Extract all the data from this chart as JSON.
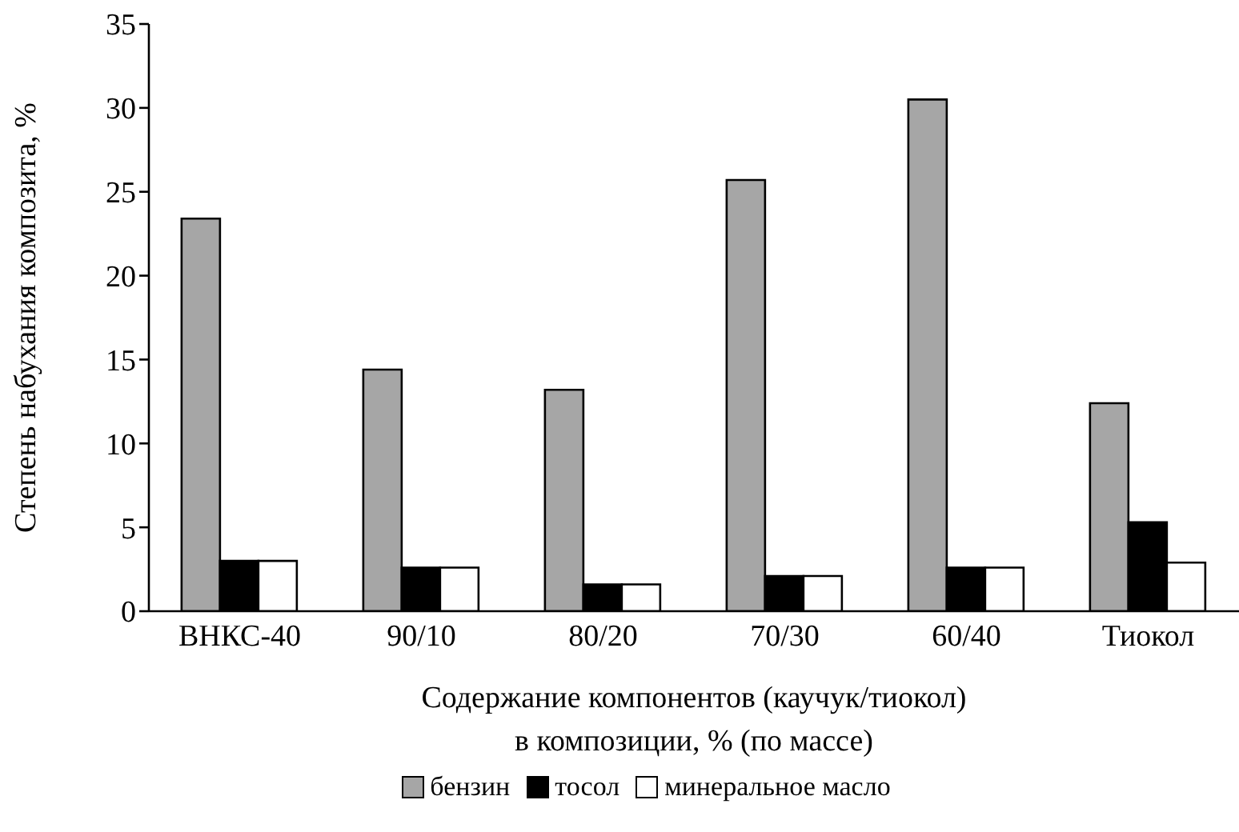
{
  "chart_data": {
    "type": "bar",
    "xlabel": "Содержание компонентов (каучук/тиокол)\nв композиции, %  (по массе)",
    "ylabel": "Степень набухания композита, %",
    "categories": [
      "ВНКС-40",
      "90/10",
      "80/20",
      "70/30",
      "60/40",
      "Тиокол"
    ],
    "series": [
      {
        "name": "бензин",
        "color": "#a6a6a6",
        "values": [
          23.4,
          14.4,
          13.2,
          25.7,
          30.5,
          12.4
        ]
      },
      {
        "name": "тосол",
        "color": "#000000",
        "values": [
          3.0,
          2.6,
          1.6,
          2.1,
          2.6,
          5.3
        ]
      },
      {
        "name": "минеральное масло",
        "color": "#ffffff",
        "values": [
          3.0,
          2.6,
          1.6,
          2.1,
          2.6,
          2.9
        ]
      }
    ],
    "ylim": [
      0,
      35
    ],
    "yticks": [
      0,
      5,
      10,
      15,
      20,
      25,
      30,
      35
    ],
    "grid": false,
    "legend": "bottom"
  }
}
